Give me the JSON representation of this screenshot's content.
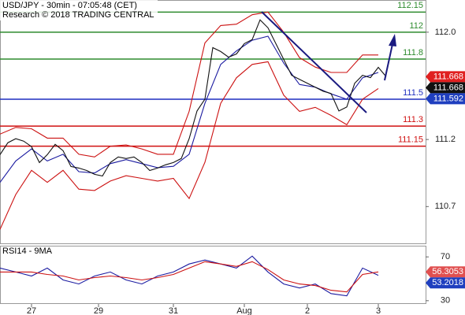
{
  "header": {
    "title": "USD/JPY - 30min - 07:05:48 (CET)",
    "subtitle": "Research © 2018 TRADING CENTRAL"
  },
  "chart_data": [
    {
      "type": "line",
      "xlim": [
        0,
        54
      ],
      "ylim": [
        110.42,
        112.24
      ],
      "yticks": [
        {
          "value": 112,
          "label": "112.0"
        },
        111.2,
        110.7
      ],
      "levels": [
        {
          "value": 112.15,
          "color": "#2e8b2e"
        },
        {
          "value": 112,
          "color": "#2e8b2e"
        },
        {
          "value": 111.8,
          "color": "#2e8b2e"
        },
        {
          "value": 111.5,
          "color": "#1f2fbf"
        },
        {
          "value": 111.3,
          "color": "#d01010"
        },
        {
          "value": 111.15,
          "color": "#d01010"
        }
      ],
      "series": [
        {
          "color": "#cc1111",
          "x": [
            0,
            2,
            4,
            6,
            8,
            10,
            12,
            14,
            16,
            18,
            20,
            22,
            24,
            26,
            28,
            30,
            32,
            34,
            36,
            38,
            40,
            42,
            44,
            46,
            48
          ],
          "values": [
            111.24,
            111.29,
            111.28,
            111.21,
            111.21,
            111.09,
            111.07,
            111.15,
            111.16,
            111.13,
            111.09,
            111.09,
            111.41,
            111.92,
            112.05,
            112.06,
            112.13,
            112.15,
            112.0,
            111.81,
            111.74,
            111.7,
            111.7,
            111.83,
            111.83
          ]
        },
        {
          "color": "#cc1111",
          "x": [
            0,
            2,
            4,
            6,
            8,
            10,
            12,
            14,
            16,
            18,
            20,
            22,
            24,
            26,
            28,
            30,
            32,
            34,
            36,
            38,
            40,
            42,
            44,
            46,
            48
          ],
          "values": [
            110.53,
            110.79,
            110.97,
            110.88,
            110.97,
            110.83,
            110.82,
            110.89,
            110.93,
            110.91,
            110.89,
            110.91,
            110.76,
            111.03,
            111.47,
            111.66,
            111.76,
            111.78,
            111.53,
            111.41,
            111.44,
            111.38,
            111.31,
            111.5,
            111.58
          ]
        },
        {
          "color": "#1a1aa0",
          "x": [
            0,
            2,
            4,
            6,
            8,
            10,
            12,
            14,
            16,
            18,
            20,
            22,
            24,
            26,
            28,
            30,
            32,
            34,
            36,
            38,
            40,
            42,
            44,
            46,
            48
          ],
          "values": [
            110.88,
            111.04,
            111.13,
            111.04,
            111.09,
            110.96,
            110.95,
            111.02,
            111.05,
            111.02,
            110.99,
            111.0,
            111.09,
            111.47,
            111.76,
            111.86,
            111.94,
            111.97,
            111.77,
            111.61,
            111.59,
            111.54,
            111.5,
            111.66,
            111.7
          ]
        },
        {
          "color": "#111111",
          "x": [
            0,
            1,
            2,
            3,
            4,
            5,
            6,
            7,
            8,
            9,
            10,
            11,
            12,
            13,
            14,
            15,
            16,
            17,
            18,
            19,
            20,
            21,
            22,
            23,
            24,
            25,
            26,
            27,
            28,
            29,
            30,
            31,
            32,
            33,
            34,
            35,
            36,
            37,
            38,
            39,
            40,
            41,
            42,
            43,
            44,
            45,
            46,
            47,
            48,
            49
          ],
          "values": [
            111.087,
            111.176,
            111.206,
            111.188,
            111.147,
            111.028,
            111.087,
            111.164,
            111.117,
            110.999,
            110.987,
            110.969,
            110.94,
            110.928,
            111.028,
            111.07,
            111.058,
            111.07,
            111.028,
            110.969,
            110.987,
            111.011,
            111.028,
            111.058,
            111.206,
            111.413,
            111.501,
            111.885,
            111.856,
            111.814,
            111.838,
            111.915,
            111.945,
            112.092,
            112.033,
            111.915,
            111.797,
            111.679,
            111.649,
            111.619,
            111.59,
            111.56,
            111.543,
            111.413,
            111.442,
            111.619,
            111.679,
            111.661,
            111.738,
            111.668
          ]
        }
      ],
      "price_tags": [
        {
          "value": 111.668,
          "color": "#e02020"
        },
        {
          "value": 111.668,
          "color": "#111111"
        },
        {
          "value": 111.592,
          "color": "#1f3fbf"
        }
      ]
    },
    {
      "type": "line",
      "title": "RSI14 - 9MA",
      "xlim": [
        0,
        54
      ],
      "ylim": [
        27,
        79.5
      ],
      "yticks": [
        70,
        30
      ],
      "xticks": [
        {
          "value": 4,
          "label": "27"
        },
        {
          "value": 12.5,
          "label": "29"
        },
        {
          "value": 22,
          "label": "31"
        },
        {
          "value": 31,
          "label": "Aug"
        },
        {
          "value": 39,
          "label": "2"
        },
        {
          "value": 48,
          "label": "3"
        }
      ],
      "series": [
        {
          "color": "#1a1aa0",
          "x": [
            0,
            2,
            4,
            6,
            8,
            10,
            12,
            14,
            16,
            18,
            20,
            22,
            24,
            26,
            28,
            30,
            32,
            34,
            36,
            38,
            40,
            42,
            44,
            46,
            48
          ],
          "values": [
            59.8,
            56.2,
            52.5,
            59.8,
            48.9,
            45.3,
            52.5,
            56.2,
            48.9,
            45.3,
            52.5,
            56.2,
            63.5,
            67.1,
            63.5,
            59.8,
            70.7,
            56.2,
            45.3,
            41.6,
            45.3,
            36.5,
            34.4,
            59.8,
            53.2
          ]
        },
        {
          "color": "#cc1111",
          "x": [
            0,
            2,
            4,
            6,
            8,
            10,
            12,
            14,
            16,
            18,
            20,
            22,
            24,
            26,
            28,
            30,
            32,
            34,
            36,
            38,
            40,
            42,
            44,
            46,
            48
          ],
          "values": [
            56.2,
            56.2,
            56.2,
            54.0,
            52.5,
            48.9,
            51.1,
            52.5,
            51.1,
            48.9,
            51.1,
            54.0,
            59.8,
            65.6,
            63.5,
            61.3,
            65.6,
            58.4,
            48.9,
            45.3,
            43.8,
            39.5,
            38.0,
            54.0,
            56.3
          ]
        }
      ],
      "price_tags": [
        {
          "value": 56.3053,
          "color": "#e05050"
        },
        {
          "value": 53.2018,
          "color": "#1f3fbf"
        }
      ]
    }
  ]
}
